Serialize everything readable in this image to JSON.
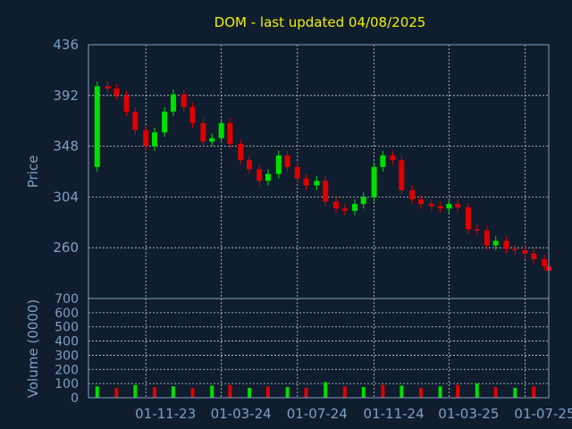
{
  "colors": {
    "background": "#0f1d2e",
    "up": "#00e000",
    "down": "#e00000",
    "text": "#7f9fc4",
    "title": "#f0f000"
  },
  "chart_data": {
    "type": "candlestick",
    "title": "DOM - last updated 04/08/2025",
    "price_panel": {
      "ylabel": "Price",
      "ylim": [
        216,
        436
      ],
      "yticks": [
        260,
        304,
        348,
        392,
        436
      ],
      "ytick_labels": [
        "260",
        "304",
        "348",
        "392",
        "436"
      ],
      "grid": true
    },
    "volume_panel": {
      "ylabel": "Volume (0000)",
      "ylim": [
        0,
        700
      ],
      "yticks": [
        0,
        100,
        200,
        300,
        400,
        500,
        600,
        700
      ],
      "ytick_labels": [
        "0",
        "100",
        "200",
        "300",
        "400",
        "500",
        "600",
        "700"
      ],
      "grid": true
    },
    "xlim": [
      "2023-08-01",
      "2025-08-08"
    ],
    "xticks": [
      "2023-11-01",
      "2024-03-01",
      "2024-07-01",
      "2024-11-01",
      "2025-03-01",
      "2025-07-01"
    ],
    "xtick_labels": [
      "01-11-23",
      "01-03-24",
      "01-07-24",
      "01-11-24",
      "01-03-25",
      "01-07-25"
    ],
    "price_series": {
      "x": [
        "2023-08-01",
        "2023-08-15",
        "2023-09-01",
        "2023-09-15",
        "2023-10-01",
        "2023-10-15",
        "2023-11-01",
        "2023-11-15",
        "2023-12-01",
        "2023-12-15",
        "2024-01-01",
        "2024-01-15",
        "2024-02-01",
        "2024-02-15",
        "2024-03-01",
        "2024-03-15",
        "2024-04-01",
        "2024-04-15",
        "2024-05-01",
        "2024-05-15",
        "2024-06-01",
        "2024-06-15",
        "2024-07-01",
        "2024-07-15",
        "2024-08-01",
        "2024-08-15",
        "2024-09-01",
        "2024-09-15",
        "2024-10-01",
        "2024-10-15",
        "2024-11-01",
        "2024-11-15",
        "2024-12-01",
        "2024-12-15",
        "2025-01-01",
        "2025-01-15",
        "2025-02-01",
        "2025-02-15",
        "2025-03-01",
        "2025-03-15",
        "2025-04-01",
        "2025-04-15",
        "2025-05-01",
        "2025-05-15",
        "2025-06-01",
        "2025-06-15",
        "2025-07-01",
        "2025-07-15",
        "2025-08-01",
        "2025-08-08"
      ],
      "close": [
        330,
        400,
        398,
        392,
        378,
        362,
        348,
        360,
        378,
        393,
        382,
        368,
        352,
        355,
        368,
        350,
        336,
        328,
        318,
        324,
        340,
        330,
        320,
        314,
        318,
        300,
        294,
        292,
        298,
        304,
        330,
        340,
        336,
        310,
        302,
        298,
        296,
        294,
        298,
        295,
        276,
        275,
        262,
        266,
        259,
        258,
        255,
        250,
        244,
        240
      ]
    },
    "volume_series": {
      "x": [
        "2023-08-15",
        "2023-09-15",
        "2023-10-15",
        "2023-11-15",
        "2023-12-15",
        "2024-01-15",
        "2024-02-15",
        "2024-03-15",
        "2024-04-15",
        "2024-05-15",
        "2024-06-15",
        "2024-07-15",
        "2024-08-15",
        "2024-09-15",
        "2024-10-15",
        "2024-11-15",
        "2024-12-15",
        "2025-01-15",
        "2025-02-15",
        "2025-03-15",
        "2025-04-15",
        "2025-05-15",
        "2025-06-15",
        "2025-07-15"
      ],
      "values": [
        80,
        70,
        90,
        75,
        80,
        70,
        85,
        90,
        70,
        80,
        75,
        70,
        110,
        80,
        75,
        90,
        85,
        70,
        80,
        90,
        100,
        75,
        70,
        80
      ]
    }
  }
}
